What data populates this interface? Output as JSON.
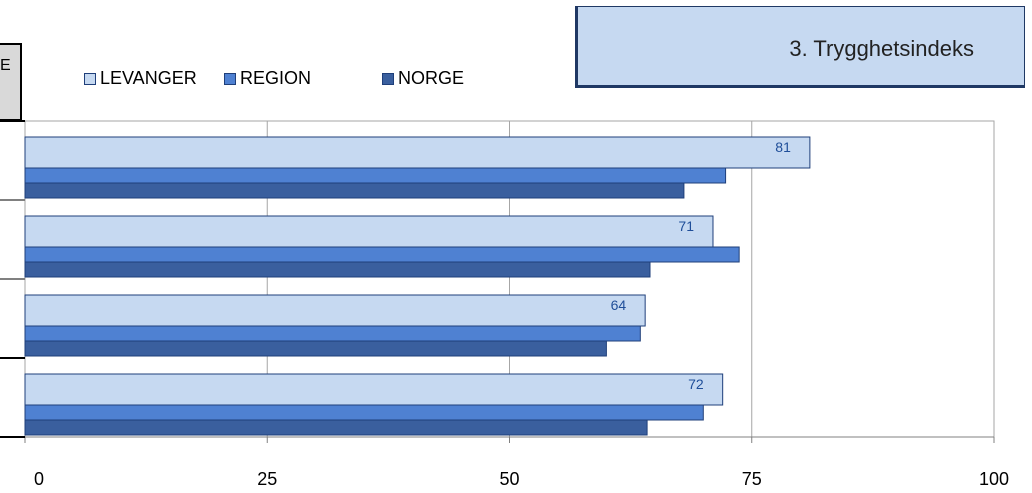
{
  "title": "3. Trygghetsindeks",
  "left_tab": {
    "text": "E"
  },
  "colors": {
    "levanger": "#c6d9f1",
    "region": "#4f81d2",
    "norge": "#3a5f9e",
    "outline": "#1f3f7a",
    "title_box": "#c6d9f1",
    "data_label": "#1f4e99"
  },
  "chart_data": {
    "type": "bar",
    "orientation": "horizontal",
    "title": "3. Trygghetsindeks",
    "xlabel": "",
    "ylabel": "",
    "xlim": [
      0,
      100
    ],
    "x_ticks": [
      "0",
      "25",
      "50",
      "75",
      "100"
    ],
    "categories": [
      "",
      "",
      "",
      ""
    ],
    "series": [
      {
        "name": "LEVANGER",
        "values": [
          81,
          71,
          64,
          72
        ],
        "data_labels": [
          "81",
          "71",
          "64",
          "72"
        ]
      },
      {
        "name": "REGION",
        "values": [
          72.3,
          73.7,
          63.5,
          70
        ]
      },
      {
        "name": "NORGE",
        "values": [
          68,
          64.5,
          60,
          64.2
        ]
      }
    ],
    "grid": true,
    "legend": "top-left"
  }
}
